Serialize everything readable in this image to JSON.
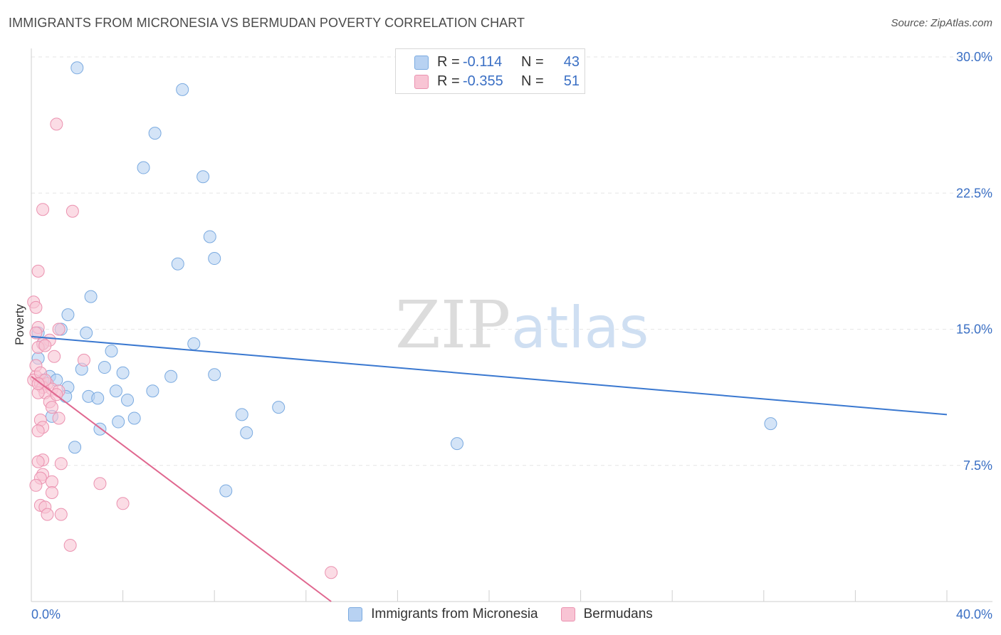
{
  "title": "IMMIGRANTS FROM MICRONESIA VS BERMUDAN POVERTY CORRELATION CHART",
  "source": "Source: ZipAtlas.com",
  "watermark": {
    "zip": "ZIP",
    "atlas": "atlas"
  },
  "legend": {
    "rows": [
      {
        "r_label": "R =",
        "r_value": "-0.114",
        "n_label": "N =",
        "n_value": "43"
      },
      {
        "r_label": "R =",
        "r_value": "-0.355",
        "n_label": "N =",
        "n_value": "51"
      }
    ]
  },
  "bottom_legend": {
    "series1": "Immigrants from Micronesia",
    "series2": "Bermudans"
  },
  "colors": {
    "blue_fill": "#b8d2f2",
    "blue_stroke": "#7aaae0",
    "blue_line": "#3a78d0",
    "pink_fill": "#f8c4d4",
    "pink_stroke": "#eb92b0",
    "pink_line": "#e0678f",
    "axis_text": "#3a6fc4"
  },
  "chart_data": {
    "type": "scatter",
    "title": "IMMIGRANTS FROM MICRONESIA VS BERMUDAN POVERTY CORRELATION CHART",
    "xlabel": "",
    "ylabel": "Poverty",
    "xlim": [
      0,
      40
    ],
    "ylim": [
      0,
      30
    ],
    "x_tick_labels": [
      "0.0%",
      "40.0%"
    ],
    "y_ticks": [
      7.5,
      15.0,
      22.5,
      30.0
    ],
    "y_tick_labels": [
      "7.5%",
      "15.0%",
      "22.5%",
      "30.0%"
    ],
    "series": [
      {
        "name": "Immigrants from Micronesia",
        "R": -0.114,
        "N": 43,
        "trend": {
          "x": [
            0,
            40
          ],
          "y": [
            14.6,
            10.3
          ]
        },
        "points": [
          [
            2.0,
            29.4
          ],
          [
            6.6,
            28.2
          ],
          [
            5.4,
            25.8
          ],
          [
            4.9,
            23.9
          ],
          [
            7.5,
            23.4
          ],
          [
            7.8,
            20.1
          ],
          [
            6.4,
            18.6
          ],
          [
            8.0,
            18.9
          ],
          [
            2.6,
            16.8
          ],
          [
            1.6,
            15.8
          ],
          [
            0.3,
            14.8
          ],
          [
            1.3,
            15.0
          ],
          [
            2.4,
            14.8
          ],
          [
            0.5,
            14.2
          ],
          [
            7.1,
            14.2
          ],
          [
            3.5,
            13.8
          ],
          [
            0.3,
            13.4
          ],
          [
            2.2,
            12.8
          ],
          [
            3.2,
            12.9
          ],
          [
            4.0,
            12.6
          ],
          [
            6.1,
            12.4
          ],
          [
            8.0,
            12.5
          ],
          [
            0.8,
            12.4
          ],
          [
            1.1,
            12.2
          ],
          [
            0.5,
            12.2
          ],
          [
            1.6,
            11.8
          ],
          [
            3.7,
            11.6
          ],
          [
            5.3,
            11.6
          ],
          [
            2.5,
            11.3
          ],
          [
            1.5,
            11.3
          ],
          [
            2.9,
            11.2
          ],
          [
            4.2,
            11.1
          ],
          [
            10.8,
            10.7
          ],
          [
            9.2,
            10.3
          ],
          [
            3.8,
            9.9
          ],
          [
            4.5,
            10.1
          ],
          [
            0.9,
            10.2
          ],
          [
            3.0,
            9.5
          ],
          [
            9.4,
            9.3
          ],
          [
            32.3,
            9.8
          ],
          [
            18.6,
            8.7
          ],
          [
            1.9,
            8.5
          ],
          [
            8.5,
            6.1
          ]
        ]
      },
      {
        "name": "Bermudans",
        "R": -0.355,
        "N": 51,
        "trend": {
          "x": [
            0,
            13.1
          ],
          "y": [
            12.4,
            0
          ]
        },
        "points": [
          [
            1.1,
            26.3
          ],
          [
            0.5,
            21.6
          ],
          [
            1.8,
            21.5
          ],
          [
            0.3,
            18.2
          ],
          [
            0.1,
            16.5
          ],
          [
            0.2,
            16.2
          ],
          [
            0.3,
            15.1
          ],
          [
            1.2,
            15.0
          ],
          [
            0.2,
            14.8
          ],
          [
            0.8,
            14.4
          ],
          [
            0.5,
            14.2
          ],
          [
            0.3,
            14.0
          ],
          [
            0.6,
            14.1
          ],
          [
            1.0,
            13.5
          ],
          [
            2.3,
            13.3
          ],
          [
            0.2,
            12.4
          ],
          [
            0.1,
            12.2
          ],
          [
            0.4,
            12.0
          ],
          [
            0.7,
            12.0
          ],
          [
            0.5,
            11.8
          ],
          [
            0.9,
            11.7
          ],
          [
            1.2,
            11.6
          ],
          [
            0.6,
            11.5
          ],
          [
            0.3,
            11.5
          ],
          [
            0.8,
            11.0
          ],
          [
            0.9,
            10.7
          ],
          [
            1.2,
            10.1
          ],
          [
            0.4,
            10.0
          ],
          [
            0.5,
            9.6
          ],
          [
            0.3,
            9.4
          ],
          [
            0.5,
            7.8
          ],
          [
            0.3,
            7.7
          ],
          [
            1.3,
            7.6
          ],
          [
            0.5,
            7.0
          ],
          [
            0.4,
            6.8
          ],
          [
            0.9,
            6.6
          ],
          [
            3.0,
            6.5
          ],
          [
            0.2,
            6.4
          ],
          [
            0.9,
            6.0
          ],
          [
            4.0,
            5.4
          ],
          [
            0.4,
            5.3
          ],
          [
            0.6,
            5.2
          ],
          [
            0.7,
            4.8
          ],
          [
            1.3,
            4.8
          ],
          [
            1.7,
            3.1
          ],
          [
            13.1,
            1.6
          ],
          [
            0.2,
            13.0
          ],
          [
            0.4,
            12.6
          ],
          [
            0.6,
            12.2
          ],
          [
            1.1,
            11.4
          ],
          [
            0.3,
            12.0
          ]
        ]
      }
    ]
  }
}
